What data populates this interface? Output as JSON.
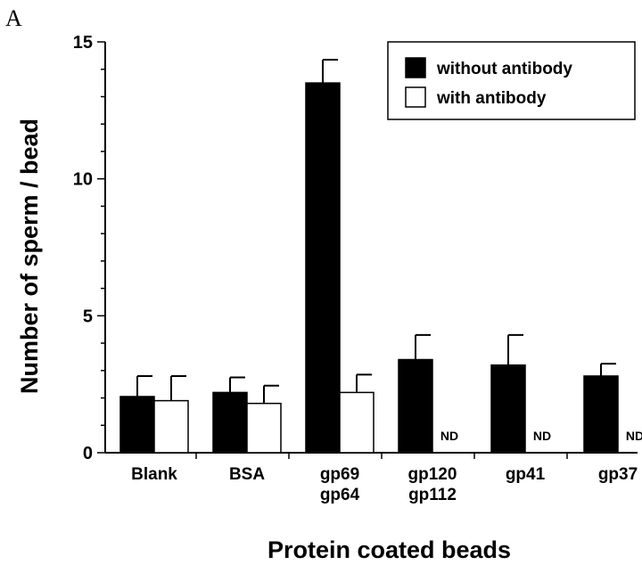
{
  "panel_label": "A",
  "chart_data": {
    "type": "bar",
    "title": "",
    "xlabel": "Protein coated beads",
    "ylabel": "Number of sperm / bead",
    "ylim": [
      0,
      15
    ],
    "yticks": [
      0,
      5,
      10,
      15
    ],
    "grid": false,
    "legend_position": "top-right",
    "categories": [
      [
        "Blank"
      ],
      [
        "BSA"
      ],
      [
        "gp69",
        "gp64"
      ],
      [
        "gp120",
        "gp112"
      ],
      [
        "gp41"
      ],
      [
        "gp37"
      ]
    ],
    "series": [
      {
        "name": "without antibody",
        "color": "#000000",
        "values": [
          2.05,
          2.2,
          13.5,
          3.4,
          3.2,
          2.8
        ],
        "errors": [
          0.75,
          0.55,
          0.85,
          0.9,
          1.1,
          0.45
        ]
      },
      {
        "name": "with antibody",
        "color": "#ffffff",
        "values": [
          1.9,
          1.8,
          2.2,
          null,
          null,
          null
        ],
        "errors": [
          0.9,
          0.65,
          0.65,
          null,
          null,
          null
        ],
        "missing_label": "ND"
      }
    ]
  }
}
